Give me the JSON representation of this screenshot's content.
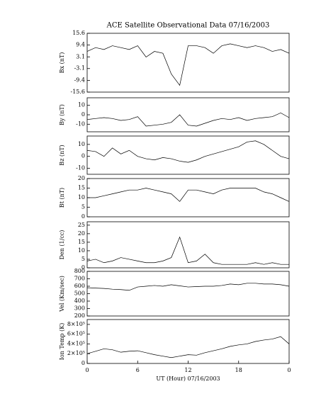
{
  "chart_data": [
    {
      "type": "line",
      "title": "ACE Satellite Observational Data  07/16/2003",
      "ylabel": "Bx (nT)",
      "x": [
        0,
        1,
        2,
        3,
        4,
        5,
        6,
        7,
        8,
        9,
        10,
        11,
        12,
        13,
        14,
        15,
        16,
        17,
        18,
        19,
        20,
        21,
        22,
        23,
        24
      ],
      "values": [
        6,
        8,
        7,
        9,
        8,
        7,
        9,
        3,
        6,
        5,
        -6,
        -12,
        9,
        9,
        8,
        5,
        9,
        10,
        9,
        8,
        9,
        8,
        6,
        7,
        5
      ],
      "xlim": [
        0,
        24
      ],
      "ylim": [
        -15.6,
        15.6
      ],
      "yticks": [
        15.6,
        9.4,
        3.1,
        -3.1,
        -9.4,
        -15.6
      ],
      "color": "#000000"
    },
    {
      "type": "line",
      "ylabel": "By (nT)",
      "x": [
        0,
        1,
        2,
        3,
        4,
        5,
        6,
        7,
        8,
        9,
        10,
        11,
        12,
        13,
        14,
        15,
        16,
        17,
        18,
        19,
        20,
        21,
        22,
        23,
        24
      ],
      "values": [
        -5,
        -4,
        -3,
        -4,
        -6,
        -5,
        -2,
        -12,
        -11,
        -10,
        -8,
        0,
        -11,
        -12,
        -9,
        -6,
        -4,
        -5,
        -3,
        -6,
        -4,
        -3,
        -2,
        2,
        -3
      ],
      "xlim": [
        0,
        24
      ],
      "ylim": [
        -18,
        18
      ],
      "yticks": [
        -10,
        0,
        10
      ],
      "color": "#000000"
    },
    {
      "type": "line",
      "ylabel": "Bz (nT)",
      "x": [
        0,
        1,
        2,
        3,
        4,
        5,
        6,
        7,
        8,
        9,
        10,
        11,
        12,
        13,
        14,
        15,
        16,
        17,
        18,
        19,
        20,
        21,
        22,
        23,
        24
      ],
      "values": [
        5,
        4,
        0,
        7,
        2,
        5,
        0,
        -2,
        -3,
        -1,
        -2,
        -4,
        -5,
        -3,
        0,
        2,
        4,
        6,
        8,
        12,
        13,
        10,
        5,
        0,
        -2
      ],
      "xlim": [
        0,
        24
      ],
      "ylim": [
        -15,
        17
      ],
      "yticks": [
        -10,
        0,
        10
      ],
      "color": "#000000"
    },
    {
      "type": "line",
      "ylabel": "Bt (nT)",
      "x": [
        0,
        1,
        2,
        3,
        4,
        5,
        6,
        7,
        8,
        9,
        10,
        11,
        12,
        13,
        14,
        15,
        16,
        17,
        18,
        19,
        20,
        21,
        22,
        23,
        24
      ],
      "values": [
        10,
        10,
        11,
        12,
        13,
        14,
        14,
        15,
        14,
        13,
        12,
        8,
        14,
        14,
        13,
        12,
        14,
        15,
        15,
        15,
        15,
        13,
        12,
        10,
        8
      ],
      "xlim": [
        0,
        24
      ],
      "ylim": [
        0,
        20
      ],
      "yticks": [
        0,
        5,
        10,
        15,
        20
      ],
      "color": "#000000"
    },
    {
      "type": "line",
      "ylabel": "Den (1/cc)",
      "x": [
        0,
        1,
        2,
        3,
        4,
        5,
        6,
        7,
        8,
        9,
        10,
        11,
        12,
        13,
        14,
        15,
        16,
        17,
        18,
        19,
        20,
        21,
        22,
        23,
        24
      ],
      "values": [
        4,
        5,
        3,
        4,
        6,
        5,
        4,
        3,
        3,
        4,
        6,
        18,
        3,
        4,
        8,
        3,
        2,
        2,
        2,
        2,
        3,
        2,
        3,
        2,
        2
      ],
      "xlim": [
        0,
        24
      ],
      "ylim": [
        0,
        27
      ],
      "yticks": [
        0,
        5,
        10,
        15,
        20,
        25
      ],
      "color": "#000000"
    },
    {
      "type": "line",
      "ylabel": "Vel (Km/sec)",
      "x": [
        0,
        1,
        2,
        3,
        4,
        5,
        6,
        7,
        8,
        9,
        10,
        11,
        12,
        13,
        14,
        15,
        16,
        17,
        18,
        19,
        20,
        21,
        22,
        23,
        24
      ],
      "values": [
        580,
        575,
        570,
        560,
        555,
        545,
        590,
        600,
        610,
        600,
        620,
        605,
        590,
        595,
        600,
        600,
        610,
        630,
        620,
        640,
        640,
        630,
        630,
        620,
        600
      ],
      "xlim": [
        0,
        24
      ],
      "ylim": [
        200,
        800
      ],
      "yticks": [
        200,
        300,
        400,
        500,
        600,
        700,
        800
      ],
      "color": "#000000"
    },
    {
      "type": "line",
      "ylabel": "Ion Temp (K)",
      "xlabel": "UT (Hour)  07/16/2003",
      "x": [
        0,
        1,
        2,
        3,
        4,
        5,
        6,
        7,
        8,
        9,
        10,
        11,
        12,
        13,
        14,
        15,
        16,
        17,
        18,
        19,
        20,
        21,
        22,
        23,
        24
      ],
      "values": [
        200000,
        250000,
        300000,
        280000,
        230000,
        250000,
        260000,
        220000,
        180000,
        150000,
        120000,
        150000,
        180000,
        170000,
        220000,
        260000,
        300000,
        350000,
        380000,
        400000,
        450000,
        480000,
        500000,
        550000,
        400000
      ],
      "xlim": [
        0,
        24
      ],
      "ylim": [
        0,
        900000
      ],
      "yticks": [
        0,
        {
          "value": 200000,
          "label": "2×10⁵"
        },
        {
          "value": 400000,
          "label": "4×10⁵"
        },
        {
          "value": 600000,
          "label": "6×10⁵"
        },
        {
          "value": 800000,
          "label": "8×10⁵"
        }
      ],
      "xticks": [
        0,
        6,
        12,
        18,
        {
          "value": 24,
          "label": "0"
        }
      ],
      "color": "#000000"
    }
  ]
}
